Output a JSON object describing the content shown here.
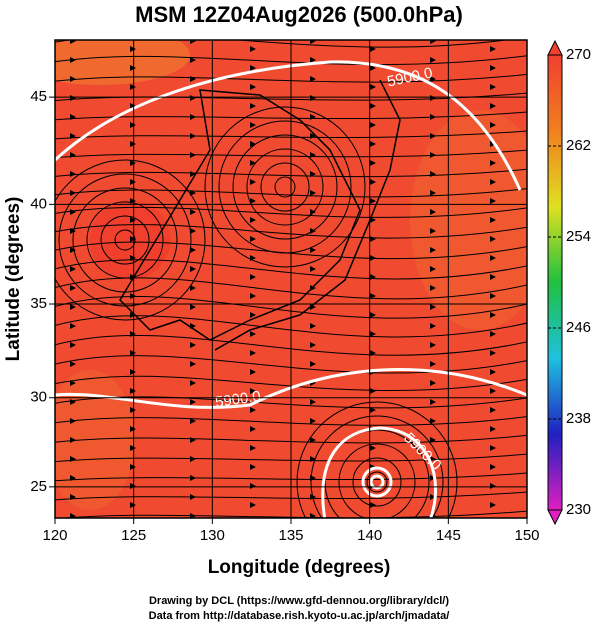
{
  "chart_data": {
    "type": "map",
    "title": "MSM 12Z04Aug2026 (500.0hPa)",
    "xlabel": "Longitude (degrees)",
    "ylabel": "Latitude  (degrees)",
    "xlim": [
      120,
      150
    ],
    "xticks": [
      120,
      125,
      130,
      135,
      140,
      145,
      150
    ],
    "ylim": [
      23.2,
      47.5
    ],
    "yticks": [
      25,
      30,
      35,
      40,
      45
    ],
    "projection": "mercator",
    "grid": true,
    "annotations": [
      "5900.0",
      "5900.0",
      "5900.0"
    ],
    "colorbar": {
      "lim": [
        230,
        270
      ],
      "ticks": [
        230,
        238,
        246,
        254,
        262,
        270
      ],
      "colors": [
        "#e020c0",
        "#2020c0",
        "#20c0e0",
        "#20c040",
        "#e0e020",
        "#f08020",
        "#f04030"
      ]
    },
    "credits": [
      "Drawing by DCL (https://www.gfd-dennou.org/library/dcl/)",
      "Data from http://database.rish.kyoto-u.ac.jp/arch/jmadata/"
    ]
  }
}
